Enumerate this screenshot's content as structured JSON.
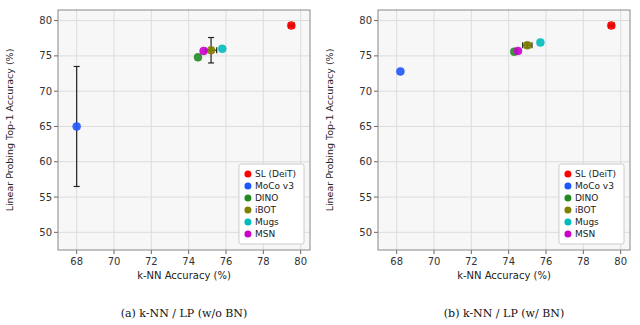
{
  "chart_data": [
    {
      "type": "scatter",
      "title": "(a) k-NN / LP (w/o BN)",
      "x_label": "k-NN Accuracy (%)",
      "y_label": "Linear Probing Top-1 Accuracy (%)",
      "xlim": [
        67.0,
        80.5
      ],
      "ylim": [
        47.5,
        81.5
      ],
      "xticks": [
        68,
        70,
        72,
        74,
        76,
        78,
        80
      ],
      "yticks": [
        50,
        55,
        60,
        65,
        70,
        75,
        80
      ],
      "grid": true,
      "legend": "lower right",
      "series": [
        {
          "name": "SL (DeiT)",
          "color": "#ff0000",
          "x": [
            79.5
          ],
          "values": [
            79.3
          ],
          "x_errors": [
            0.15
          ],
          "errors": [
            0.2
          ]
        },
        {
          "name": "MoCo v3",
          "color": "#1f55ff",
          "x": [
            68.0
          ],
          "values": [
            65.0
          ],
          "errors": [
            8.5
          ]
        },
        {
          "name": "DINO",
          "color": "#228B22",
          "x": [
            74.5
          ],
          "values": [
            74.8
          ]
        },
        {
          "name": "iBOT",
          "color": "#808000",
          "x": [
            75.2
          ],
          "values": [
            75.8
          ],
          "x_errors": [
            0.3
          ],
          "errors": [
            1.8
          ]
        },
        {
          "name": "Mugs",
          "color": "#00BBBB",
          "x": [
            75.8
          ],
          "values": [
            76.0
          ]
        },
        {
          "name": "MSN",
          "color": "#cc00cc",
          "x": [
            74.8
          ],
          "values": [
            75.7
          ]
        }
      ]
    },
    {
      "type": "scatter",
      "title": "(b) k-NN / LP (w/ BN)",
      "x_label": "k-NN Accuracy (%)",
      "y_label": "Linear Probing Top-1 Accuracy (%)",
      "xlim": [
        67.0,
        80.5
      ],
      "ylim": [
        47.5,
        81.5
      ],
      "xticks": [
        68,
        70,
        72,
        74,
        76,
        78,
        80
      ],
      "yticks": [
        50,
        55,
        60,
        65,
        70,
        75,
        80
      ],
      "grid": true,
      "legend": "lower right",
      "series": [
        {
          "name": "SL (DeiT)",
          "color": "#ff0000",
          "x": [
            79.5
          ],
          "values": [
            79.3
          ],
          "x_errors": [
            0.15
          ],
          "errors": [
            0.2
          ]
        },
        {
          "name": "MoCo v3",
          "color": "#1f55ff",
          "x": [
            68.2
          ],
          "values": [
            72.8
          ]
        },
        {
          "name": "DINO",
          "color": "#228B22",
          "x": [
            74.3
          ],
          "values": [
            75.6
          ]
        },
        {
          "name": "iBOT",
          "color": "#808000",
          "x": [
            75.0
          ],
          "values": [
            76.5
          ],
          "x_errors": [
            0.25
          ],
          "errors": [
            0.35
          ]
        },
        {
          "name": "Mugs",
          "color": "#00BBBB",
          "x": [
            75.7
          ],
          "values": [
            76.9
          ]
        },
        {
          "name": "MSN",
          "color": "#cc00cc",
          "x": [
            74.5
          ],
          "values": [
            75.7
          ]
        }
      ]
    }
  ]
}
